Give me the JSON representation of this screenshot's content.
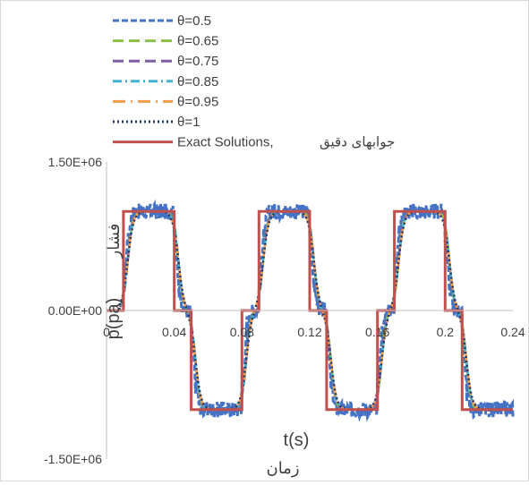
{
  "chart_data": {
    "type": "line",
    "title": "",
    "xlabel": "t(s)",
    "xlabel_secondary": "زمان",
    "ylabel": "p(pa)",
    "ylabel_secondary": "فشار",
    "xlim": [
      0,
      0.24
    ],
    "ylim": [
      -1500000,
      1500000
    ],
    "x_ticks": [
      "0",
      "0.04",
      "0.08",
      "0.12",
      "0.16",
      "0.2",
      "0.24"
    ],
    "x_tick_values": [
      0,
      0.04,
      0.08,
      0.12,
      0.16,
      0.2,
      0.24
    ],
    "y_ticks": [
      "1.50E+06",
      "0.00E+00",
      "-1.50E+06"
    ],
    "y_tick_values": [
      1500000,
      0,
      -1500000
    ],
    "grid": false,
    "legend_position": "top-left",
    "amplitude": 1000000,
    "series": [
      {
        "name": "θ=0.5",
        "color": "#4472c4",
        "dash": "dash",
        "noisy": true
      },
      {
        "name": "θ=0.65",
        "color": "#8cbd45",
        "dash": "longdash"
      },
      {
        "name": "θ=0.75",
        "color": "#7b5ca5",
        "dash": "longdash"
      },
      {
        "name": "θ=0.85",
        "color": "#3fb4cc",
        "dash": "dashdot"
      },
      {
        "name": "θ=0.95",
        "color": "#f59b4b",
        "dash": "longdashdot"
      },
      {
        "name": "θ=1",
        "color": "#1f3864",
        "dash": "dot"
      },
      {
        "name": "Exact Solutions,",
        "name_secondary": "جوابهای دقیق",
        "color": "#c0504d",
        "dash": "solid"
      }
    ],
    "exact_solution": {
      "x": [
        0,
        0.01,
        0.01,
        0.04,
        0.04,
        0.05,
        0.05,
        0.08,
        0.08,
        0.09,
        0.09,
        0.12,
        0.12,
        0.13,
        0.13,
        0.16,
        0.16,
        0.17,
        0.17,
        0.2,
        0.2,
        0.21,
        0.21,
        0.24
      ],
      "y": [
        0,
        0,
        1000000,
        1000000,
        0,
        0,
        -1000000,
        -1000000,
        0,
        0,
        1000000,
        1000000,
        0,
        0,
        -1000000,
        -1000000,
        0,
        0,
        1000000,
        1000000,
        0,
        0,
        -1000000,
        -1000000
      ]
    }
  }
}
